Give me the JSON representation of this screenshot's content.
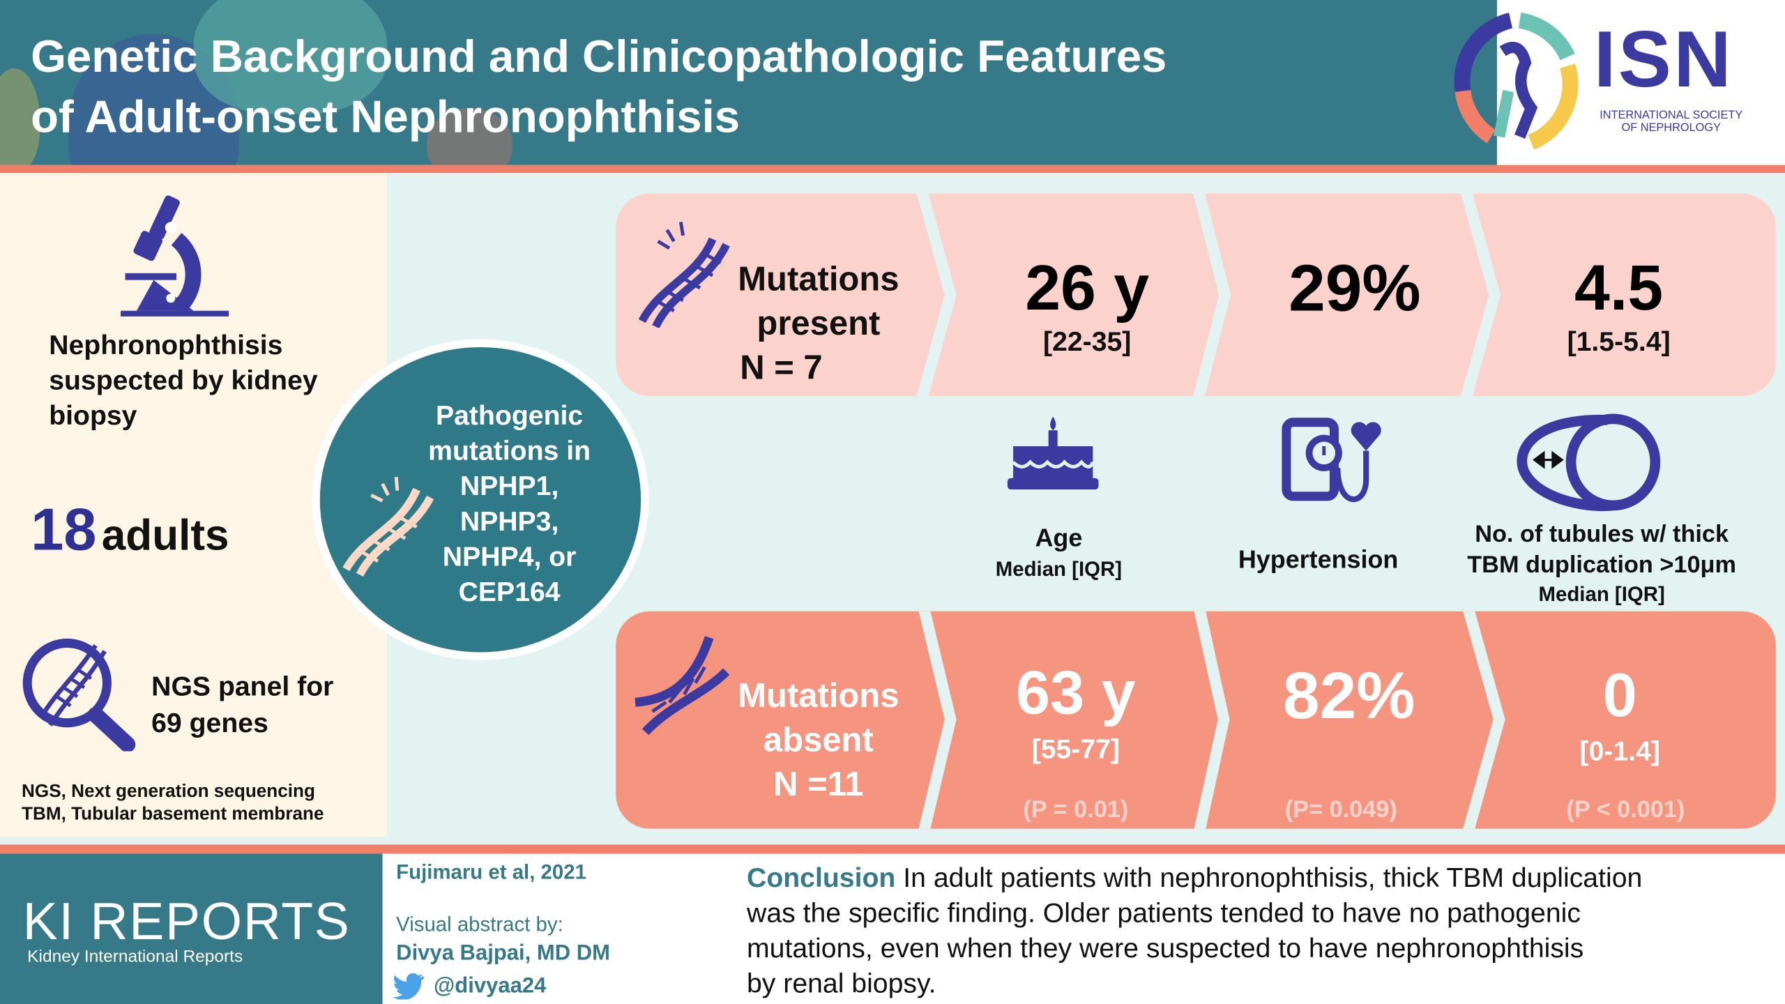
{
  "header": {
    "title_line1": "Genetic Background and Clinicopathologic Features",
    "title_line2": "of Adult-onset Nephronophthisis",
    "logo": {
      "letters": "ISN",
      "subtitle_line1": "INTERNATIONAL SOCIETY",
      "subtitle_line2": "OF NEPHROLOGY"
    }
  },
  "left_panel": {
    "biopsy_text": [
      "Nephronophthisis",
      "suspected by kidney",
      "biopsy"
    ],
    "count_number": "18",
    "count_label": "adults",
    "ngs_text": [
      "NGS panel for",
      "69 genes"
    ],
    "abbreviations": [
      "NGS, Next generation sequencing",
      "TBM, Tubular basement membrane"
    ]
  },
  "circle": {
    "lines": [
      "Pathogenic",
      "mutations in",
      "NPHP1,",
      "NPHP3,",
      "NPHP4, or",
      "CEP164"
    ]
  },
  "present_row": {
    "label": [
      "Mutations",
      "present",
      "N = 7"
    ],
    "age": {
      "value": "26 y",
      "range": "[22-35]"
    },
    "hypertension": {
      "value": "29%"
    },
    "tubules": {
      "value": "4.5",
      "range": "[1.5-5.4]"
    }
  },
  "metric_labels": {
    "age": {
      "title": "Age",
      "sub": "Median [IQR]"
    },
    "hypertension": {
      "title": "Hypertension"
    },
    "tubules": {
      "title_line1": "No. of tubules w/ thick",
      "title_line2": "TBM duplication >10μm",
      "sub": "Median [IQR]"
    }
  },
  "absent_row": {
    "label": [
      "Mutations",
      "absent",
      "N =11"
    ],
    "age": {
      "value": "63 y",
      "range": "[55-77]",
      "p": "(P = 0.01)"
    },
    "hypertension": {
      "value": "82%",
      "p": "(P= 0.049)"
    },
    "tubules": {
      "value": "0",
      "range": "[0-1.4]",
      "p": "(P < 0.001)"
    }
  },
  "footer": {
    "journal": "KI REPORTS",
    "journal_sub": "Kidney International Reports",
    "citation": "Fujimaru et al, 2021",
    "abstract_by": "Visual abstract by:",
    "author": "Divya Bajpai, MD DM",
    "twitter": "@divyaa24",
    "conclusion_label": "Conclusion",
    "conclusion_lines": [
      " In adult patients with nephronophthisis, thick TBM duplication",
      "was the specific finding. Older patients tended to have no pathogenic",
      "mutations, even when they were suspected to have nephronophthisis",
      "by renal biopsy."
    ]
  },
  "colors": {
    "teal": "#367a89",
    "indigo": "#3b3aa0",
    "coral": "#f07e68",
    "pink": "#fbd3cc",
    "salmon": "#f59580",
    "cream": "#fdf6e6",
    "mint": "#e2f3f1"
  }
}
